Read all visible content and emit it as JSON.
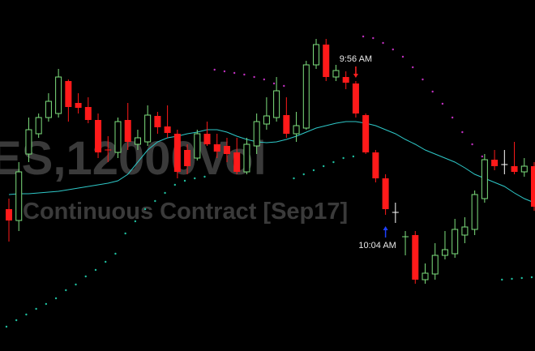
{
  "chart_data": {
    "type": "candlestick",
    "watermark_title": "ES,12000Vol",
    "watermark_subtitle": "Continuous Contract [Sep17]",
    "open": [
      175,
      161,
      243,
      268,
      288,
      293,
      333,
      306,
      301,
      285,
      248,
      245,
      285,
      255,
      258,
      290,
      277,
      268,
      248,
      238,
      268,
      255,
      253,
      245,
      221,
      253,
      280,
      288,
      291,
      268,
      275,
      353,
      378,
      338,
      338,
      330,
      291,
      245,
      213,
      171,
      140,
      143,
      88,
      95,
      118,
      120,
      143,
      150,
      188,
      236,
      230,
      228,
      221,
      228
    ],
    "high": [
      188,
      233,
      288,
      293,
      318,
      348,
      335,
      318,
      313,
      293,
      265,
      288,
      306,
      273,
      303,
      295,
      303,
      273,
      255,
      273,
      283,
      268,
      263,
      263,
      263,
      293,
      313,
      338,
      313,
      295,
      358,
      385,
      385,
      353,
      345,
      333,
      293,
      248,
      218,
      183,
      148,
      148,
      108,
      133,
      148,
      163,
      165,
      198,
      243,
      248,
      248,
      258,
      238,
      233
    ],
    "low": [
      135,
      148,
      233,
      263,
      283,
      288,
      283,
      293,
      281,
      238,
      233,
      238,
      248,
      248,
      253,
      268,
      263,
      213,
      218,
      235,
      253,
      238,
      233,
      218,
      218,
      243,
      273,
      283,
      263,
      258,
      273,
      348,
      333,
      333,
      323,
      288,
      243,
      208,
      168,
      158,
      118,
      83,
      83,
      88,
      113,
      115,
      133,
      143,
      183,
      223,
      218,
      218,
      215,
      173
    ],
    "close": [
      161,
      221,
      273,
      288,
      308,
      338,
      301,
      300,
      285,
      245,
      247,
      283,
      258,
      263,
      291,
      276,
      269,
      221,
      228,
      268,
      255,
      246,
      243,
      221,
      255,
      283,
      290,
      321,
      268,
      278,
      353,
      378,
      338,
      346,
      331,
      293,
      245,
      213,
      175,
      171,
      141,
      88,
      96,
      118,
      125,
      150,
      153,
      193,
      236,
      228,
      230,
      221,
      228,
      178
    ],
    "moving_average": [
      193,
      194,
      194,
      195,
      196,
      197,
      199,
      201,
      203,
      205,
      207,
      210,
      218,
      233,
      248,
      258,
      263,
      265,
      268,
      270,
      273,
      273,
      270,
      265,
      261,
      258,
      257,
      258,
      261,
      265,
      270,
      275,
      278,
      281,
      283,
      283,
      281,
      278,
      273,
      268,
      261,
      255,
      248,
      243,
      238,
      233,
      226,
      218,
      213,
      208,
      203,
      195,
      188,
      183
    ],
    "sar": [
      30,
      38,
      45,
      52,
      58,
      65,
      75,
      82,
      92,
      100,
      110,
      120,
      145,
      160,
      175,
      185,
      195,
      205,
      210,
      213,
      215,
      347,
      345,
      343,
      341,
      338,
      335,
      330,
      327,
      213,
      218,
      223,
      228,
      233,
      238,
      240,
      388,
      386,
      380,
      372,
      363,
      350,
      335,
      320,
      305,
      288,
      270,
      255,
      240,
      null,
      88,
      89,
      90,
      91
    ],
    "up_color": "#7ee07e",
    "down_color": "#ff1a1a",
    "doji_color": "#ffffff",
    "ma_color": "#2ec8c8",
    "sar_below_color": "#1fbfa0",
    "sar_above_color": "#c030c0",
    "ylim": [
      0,
      433
    ],
    "annotations": [
      {
        "text": "9:56 AM",
        "index": 35,
        "side": "above",
        "color": "#ff2020"
      },
      {
        "text": "10:04 AM",
        "index": 38,
        "side": "below",
        "color": "#1e40ff"
      }
    ]
  }
}
